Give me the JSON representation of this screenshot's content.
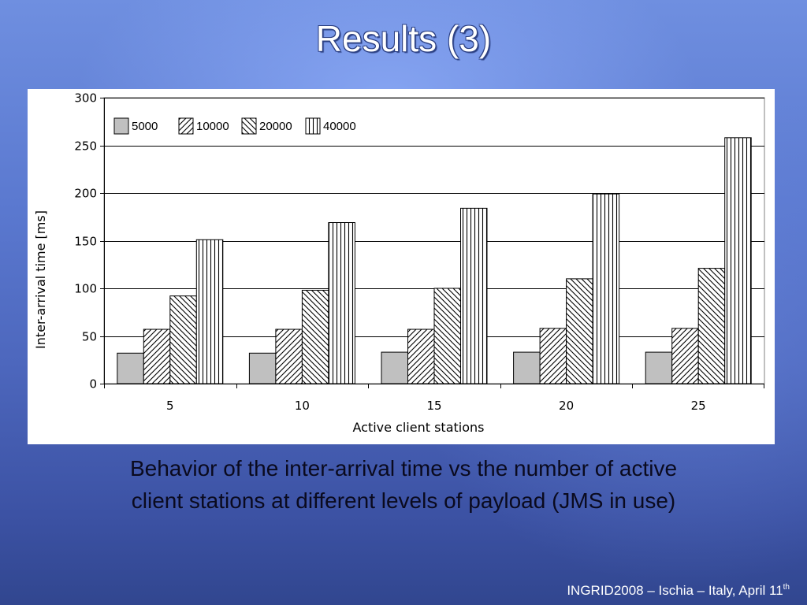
{
  "slide": {
    "title": "Results (3)",
    "caption_line1": "Behavior of the inter-arrival time vs the number of active",
    "caption_line2": "client stations at different levels of payload (JMS in use)",
    "footer_text": "INGRID2008 – Ischia – Italy, April 11",
    "footer_sup": "th"
  },
  "chart_data": {
    "type": "bar",
    "title": "",
    "xlabel": "Active client stations",
    "ylabel": "Inter-arrival time [ms]",
    "ylim": [
      0,
      300
    ],
    "yticks": [
      0,
      50,
      100,
      150,
      200,
      250,
      300
    ],
    "grid": true,
    "legend_position": "top-left",
    "categories": [
      "5",
      "10",
      "15",
      "20",
      "25"
    ],
    "series": [
      {
        "name": "5000",
        "pattern": "solid-gray",
        "color": "#c0c0c0",
        "values": [
          32,
          32,
          33,
          33,
          33
        ]
      },
      {
        "name": "10000",
        "pattern": "diagonal-up",
        "color": "#ffffff",
        "values": [
          57,
          57,
          57,
          58,
          58
        ]
      },
      {
        "name": "20000",
        "pattern": "diagonal-down",
        "color": "#ffffff",
        "values": [
          92,
          98,
          100,
          110,
          121
        ]
      },
      {
        "name": "40000",
        "pattern": "vertical-lines",
        "color": "#ffffff",
        "values": [
          151,
          169,
          184,
          199,
          258
        ]
      }
    ]
  }
}
